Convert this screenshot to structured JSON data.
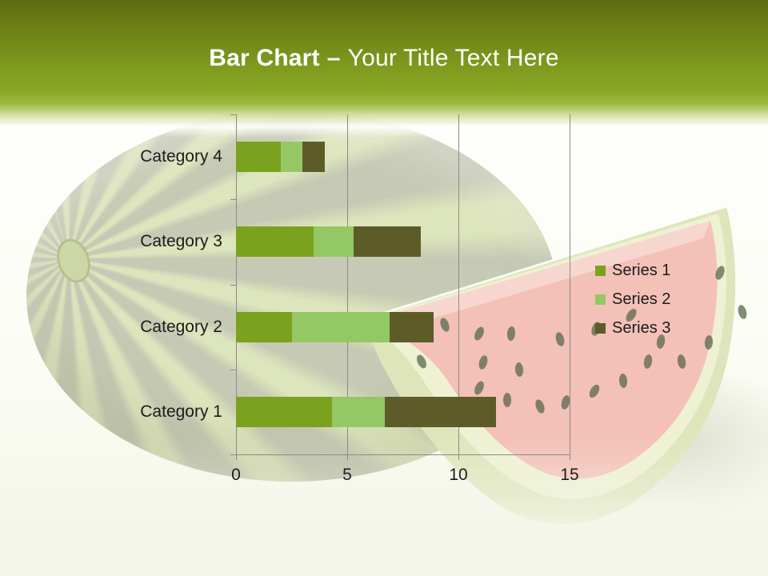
{
  "slide": {
    "title": {
      "bold": "Bar Chart",
      "separator": "–",
      "rest": "Your Title Text Here"
    }
  },
  "colors": {
    "header_green": "#7e9a1e",
    "title_text": "#ffffff",
    "axis_text": "#1c1c1c",
    "gridline": "#8a8a8a",
    "series1": "#7aa21e",
    "series2": "#94c865",
    "series3": "#5d5c28"
  },
  "chart_data": {
    "type": "bar",
    "orientation": "horizontal",
    "stacked": true,
    "title": "",
    "xlabel": "",
    "ylabel": "",
    "categories": [
      "Category 1",
      "Category 2",
      "Category 3",
      "Category 4"
    ],
    "series": [
      {
        "name": "Series 1",
        "color": "#7aa21e",
        "values": [
          4.3,
          2.5,
          3.5,
          2
        ]
      },
      {
        "name": "Series 2",
        "color": "#94c865",
        "values": [
          2.4,
          4.4,
          1.8,
          1
        ]
      },
      {
        "name": "Series 3",
        "color": "#5d5c28",
        "values": [
          5,
          2,
          3,
          1
        ]
      }
    ],
    "xlim": [
      0,
      15
    ],
    "xticks": [
      0,
      5,
      10,
      15
    ],
    "grid": true,
    "legend_position": "right"
  }
}
